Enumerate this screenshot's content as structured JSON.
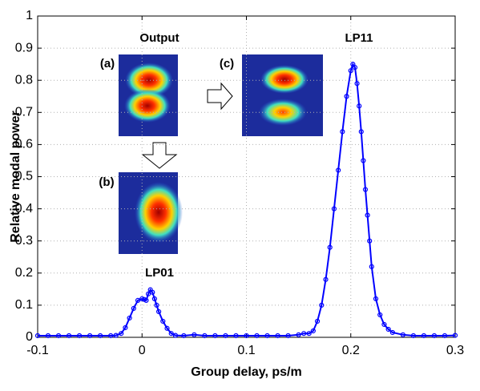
{
  "chart_data": {
    "type": "line",
    "x_label": "Group delay, ps/m",
    "y_label": "Relative modal power",
    "annotations": [
      "Output",
      "LP11",
      "LP01",
      "(a)",
      "(b)",
      "(c)"
    ],
    "x": [
      -0.1,
      -0.09,
      -0.08,
      -0.07,
      -0.06,
      -0.05,
      -0.04,
      -0.03,
      -0.025,
      -0.02,
      -0.016,
      -0.012,
      -0.008,
      -0.004,
      0,
      0.002,
      0.004,
      0.006,
      0.008,
      0.01,
      0.012,
      0.014,
      0.016,
      0.02,
      0.024,
      0.028,
      0.032,
      0.04,
      0.05,
      0.06,
      0.07,
      0.08,
      0.09,
      0.1,
      0.11,
      0.12,
      0.13,
      0.14,
      0.15,
      0.155,
      0.16,
      0.164,
      0.168,
      0.172,
      0.176,
      0.18,
      0.184,
      0.188,
      0.192,
      0.196,
      0.2,
      0.202,
      0.204,
      0.206,
      0.208,
      0.21,
      0.212,
      0.214,
      0.216,
      0.218,
      0.22,
      0.224,
      0.228,
      0.232,
      0.236,
      0.24,
      0.25,
      0.26,
      0.27,
      0.28,
      0.29,
      0.3
    ],
    "series": [
      {
        "color": "#0000ff",
        "values": [
          0.005,
          0.005,
          0.005,
          0.005,
          0.005,
          0.005,
          0.005,
          0.005,
          0.006,
          0.012,
          0.03,
          0.06,
          0.09,
          0.115,
          0.12,
          0.118,
          0.115,
          0.135,
          0.148,
          0.14,
          0.12,
          0.1,
          0.08,
          0.05,
          0.028,
          0.012,
          0.006,
          0.005,
          0.008,
          0.005,
          0.005,
          0.005,
          0.005,
          0.005,
          0.005,
          0.005,
          0.005,
          0.005,
          0.008,
          0.012,
          0.012,
          0.02,
          0.05,
          0.1,
          0.18,
          0.28,
          0.4,
          0.52,
          0.64,
          0.75,
          0.83,
          0.85,
          0.84,
          0.79,
          0.72,
          0.64,
          0.55,
          0.46,
          0.38,
          0.3,
          0.22,
          0.12,
          0.07,
          0.04,
          0.025,
          0.015,
          0.008,
          0.005,
          0.005,
          0.005,
          0.005,
          0.006
        ]
      }
    ],
    "xlim": [
      -0.1,
      0.3
    ],
    "xticks": [
      -0.1,
      0,
      0.1,
      0.2,
      0.3
    ],
    "ylim": [
      0,
      1
    ],
    "yticks": [
      0,
      0.1,
      0.2,
      0.3,
      0.4,
      0.5,
      0.6,
      0.7,
      0.8,
      0.9,
      1
    ],
    "grid": true
  }
}
